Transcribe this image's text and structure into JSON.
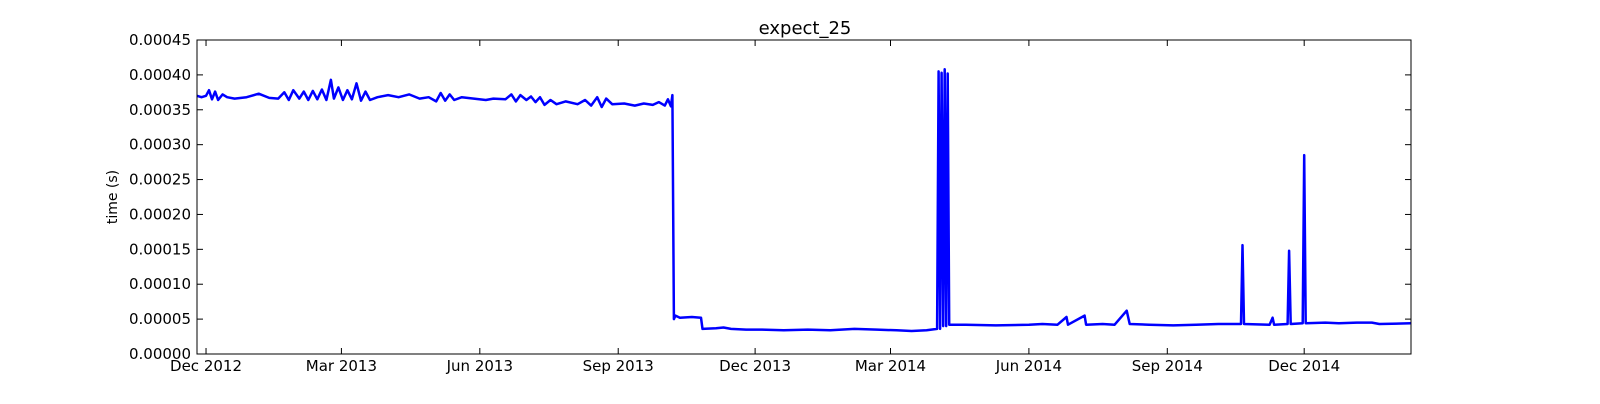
{
  "chart_data": {
    "type": "line",
    "title": "expect_25",
    "xlabel": "",
    "ylabel": "time (s)",
    "x_axis_type": "date",
    "xlim": [
      "2012-11-25",
      "2015-02-10"
    ],
    "ylim": [
      0,
      0.00045
    ],
    "grid": false,
    "legend": "none",
    "x_ticks": [
      {
        "date": "2012-12-01",
        "label": "Dec 2012"
      },
      {
        "date": "2013-03-01",
        "label": "Mar 2013"
      },
      {
        "date": "2013-06-01",
        "label": "Jun 2013"
      },
      {
        "date": "2013-09-01",
        "label": "Sep 2013"
      },
      {
        "date": "2013-12-01",
        "label": "Dec 2013"
      },
      {
        "date": "2014-03-01",
        "label": "Mar 2014"
      },
      {
        "date": "2014-06-01",
        "label": "Jun 2014"
      },
      {
        "date": "2014-09-01",
        "label": "Sep 2014"
      },
      {
        "date": "2014-12-01",
        "label": "Dec 2014"
      }
    ],
    "y_ticks": [
      {
        "value": 0.0,
        "label": "0.00000"
      },
      {
        "value": 5e-05,
        "label": "0.00005"
      },
      {
        "value": 0.0001,
        "label": "0.00010"
      },
      {
        "value": 0.00015,
        "label": "0.00015"
      },
      {
        "value": 0.0002,
        "label": "0.00020"
      },
      {
        "value": 0.00025,
        "label": "0.00025"
      },
      {
        "value": 0.0003,
        "label": "0.00030"
      },
      {
        "value": 0.00035,
        "label": "0.00035"
      },
      {
        "value": 0.0004,
        "label": "0.00040"
      },
      {
        "value": 0.00045,
        "label": "0.00045"
      }
    ],
    "series": [
      {
        "color": "#0000ff",
        "points": [
          [
            "2012-11-25",
            0.00037
          ],
          [
            "2012-11-28",
            0.000368
          ],
          [
            "2012-12-01",
            0.00037
          ],
          [
            "2012-12-03",
            0.000378
          ],
          [
            "2012-12-05",
            0.000365
          ],
          [
            "2012-12-07",
            0.000376
          ],
          [
            "2012-12-09",
            0.000364
          ],
          [
            "2012-12-12",
            0.000372
          ],
          [
            "2012-12-15",
            0.000368
          ],
          [
            "2012-12-20",
            0.000366
          ],
          [
            "2012-12-28",
            0.000368
          ],
          [
            "2013-01-05",
            0.000373
          ],
          [
            "2013-01-12",
            0.000367
          ],
          [
            "2013-01-18",
            0.000366
          ],
          [
            "2013-01-22",
            0.000375
          ],
          [
            "2013-01-25",
            0.000364
          ],
          [
            "2013-01-28",
            0.000378
          ],
          [
            "2013-02-01",
            0.000366
          ],
          [
            "2013-02-04",
            0.000376
          ],
          [
            "2013-02-07",
            0.000364
          ],
          [
            "2013-02-10",
            0.000377
          ],
          [
            "2013-02-13",
            0.000365
          ],
          [
            "2013-02-16",
            0.000379
          ],
          [
            "2013-02-19",
            0.000364
          ],
          [
            "2013-02-22",
            0.000393
          ],
          [
            "2013-02-24",
            0.000366
          ],
          [
            "2013-02-27",
            0.000382
          ],
          [
            "2013-03-02",
            0.000364
          ],
          [
            "2013-03-05",
            0.000378
          ],
          [
            "2013-03-08",
            0.000365
          ],
          [
            "2013-03-11",
            0.000388
          ],
          [
            "2013-03-14",
            0.000363
          ],
          [
            "2013-03-17",
            0.000376
          ],
          [
            "2013-03-20",
            0.000364
          ],
          [
            "2013-03-25",
            0.000368
          ],
          [
            "2013-04-01",
            0.000371
          ],
          [
            "2013-04-08",
            0.000368
          ],
          [
            "2013-04-15",
            0.000372
          ],
          [
            "2013-04-22",
            0.000366
          ],
          [
            "2013-04-28",
            0.000368
          ],
          [
            "2013-05-03",
            0.000362
          ],
          [
            "2013-05-06",
            0.000374
          ],
          [
            "2013-05-09",
            0.000363
          ],
          [
            "2013-05-12",
            0.000372
          ],
          [
            "2013-05-15",
            0.000364
          ],
          [
            "2013-05-20",
            0.000368
          ],
          [
            "2013-05-28",
            0.000366
          ],
          [
            "2013-06-05",
            0.000364
          ],
          [
            "2013-06-10",
            0.000366
          ],
          [
            "2013-06-18",
            0.000365
          ],
          [
            "2013-06-22",
            0.000372
          ],
          [
            "2013-06-25",
            0.000362
          ],
          [
            "2013-06-28",
            0.000371
          ],
          [
            "2013-07-02",
            0.000364
          ],
          [
            "2013-07-05",
            0.000369
          ],
          [
            "2013-07-08",
            0.000361
          ],
          [
            "2013-07-11",
            0.000368
          ],
          [
            "2013-07-14",
            0.000357
          ],
          [
            "2013-07-18",
            0.000364
          ],
          [
            "2013-07-22",
            0.000358
          ],
          [
            "2013-07-28",
            0.000362
          ],
          [
            "2013-08-05",
            0.000358
          ],
          [
            "2013-08-10",
            0.000364
          ],
          [
            "2013-08-14",
            0.000356
          ],
          [
            "2013-08-18",
            0.000368
          ],
          [
            "2013-08-21",
            0.000354
          ],
          [
            "2013-08-24",
            0.000366
          ],
          [
            "2013-08-28",
            0.000358
          ],
          [
            "2013-09-05",
            0.000359
          ],
          [
            "2013-09-12",
            0.000356
          ],
          [
            "2013-09-18",
            0.000359
          ],
          [
            "2013-09-24",
            0.000357
          ],
          [
            "2013-09-28",
            0.000361
          ],
          [
            "2013-10-02",
            0.000356
          ],
          [
            "2013-10-04",
            0.000365
          ],
          [
            "2013-10-06",
            0.000355
          ],
          [
            "2013-10-07",
            0.000371
          ],
          [
            "2013-10-08",
            5e-05
          ],
          [
            "2013-10-09",
            5.5e-05
          ],
          [
            "2013-10-12",
            5.2e-05
          ],
          [
            "2013-10-20",
            5.3e-05
          ],
          [
            "2013-10-26",
            5.2e-05
          ],
          [
            "2013-10-27",
            3.6e-05
          ],
          [
            "2013-11-05",
            3.7e-05
          ],
          [
            "2013-11-10",
            3.8e-05
          ],
          [
            "2013-11-15",
            3.6e-05
          ],
          [
            "2013-11-25",
            3.5e-05
          ],
          [
            "2013-12-05",
            3.5e-05
          ],
          [
            "2013-12-20",
            3.4e-05
          ],
          [
            "2014-01-05",
            3.5e-05
          ],
          [
            "2014-01-20",
            3.4e-05
          ],
          [
            "2014-02-05",
            3.6e-05
          ],
          [
            "2014-02-20",
            3.5e-05
          ],
          [
            "2014-03-05",
            3.4e-05
          ],
          [
            "2014-03-15",
            3.3e-05
          ],
          [
            "2014-03-25",
            3.4e-05
          ],
          [
            "2014-04-01",
            3.6e-05
          ],
          [
            "2014-04-02",
            0.000405
          ],
          [
            "2014-04-03",
            3.6e-05
          ],
          [
            "2014-04-04",
            0.000403
          ],
          [
            "2014-04-05",
            4e-05
          ],
          [
            "2014-04-06",
            0.000408
          ],
          [
            "2014-04-07",
            4e-05
          ],
          [
            "2014-04-08",
            0.000402
          ],
          [
            "2014-04-09",
            4.2e-05
          ],
          [
            "2014-04-20",
            4.2e-05
          ],
          [
            "2014-05-10",
            4.1e-05
          ],
          [
            "2014-06-01",
            4.2e-05
          ],
          [
            "2014-06-10",
            4.3e-05
          ],
          [
            "2014-06-20",
            4.2e-05
          ],
          [
            "2014-06-26",
            5.3e-05
          ],
          [
            "2014-06-27",
            4.2e-05
          ],
          [
            "2014-07-08",
            5.5e-05
          ],
          [
            "2014-07-09",
            4.2e-05
          ],
          [
            "2014-07-20",
            4.3e-05
          ],
          [
            "2014-07-28",
            4.2e-05
          ],
          [
            "2014-08-05",
            6.2e-05
          ],
          [
            "2014-08-07",
            4.3e-05
          ],
          [
            "2014-08-20",
            4.2e-05
          ],
          [
            "2014-09-05",
            4.1e-05
          ],
          [
            "2014-09-20",
            4.2e-05
          ],
          [
            "2014-10-05",
            4.3e-05
          ],
          [
            "2014-10-20",
            4.3e-05
          ],
          [
            "2014-10-21",
            0.000156
          ],
          [
            "2014-10-22",
            4.3e-05
          ],
          [
            "2014-11-08",
            4.2e-05
          ],
          [
            "2014-11-10",
            5.2e-05
          ],
          [
            "2014-11-11",
            4.2e-05
          ],
          [
            "2014-11-20",
            4.3e-05
          ],
          [
            "2014-11-21",
            0.000148
          ],
          [
            "2014-11-22",
            4.3e-05
          ],
          [
            "2014-11-30",
            4.4e-05
          ],
          [
            "2014-12-01",
            0.000285
          ],
          [
            "2014-12-02",
            4.4e-05
          ],
          [
            "2014-12-15",
            4.5e-05
          ],
          [
            "2014-12-24",
            4.4e-05
          ],
          [
            "2015-01-05",
            4.5e-05
          ],
          [
            "2015-01-15",
            4.5e-05
          ],
          [
            "2015-01-20",
            4.3e-05
          ],
          [
            "2015-02-10",
            4.4e-05
          ]
        ]
      }
    ]
  }
}
